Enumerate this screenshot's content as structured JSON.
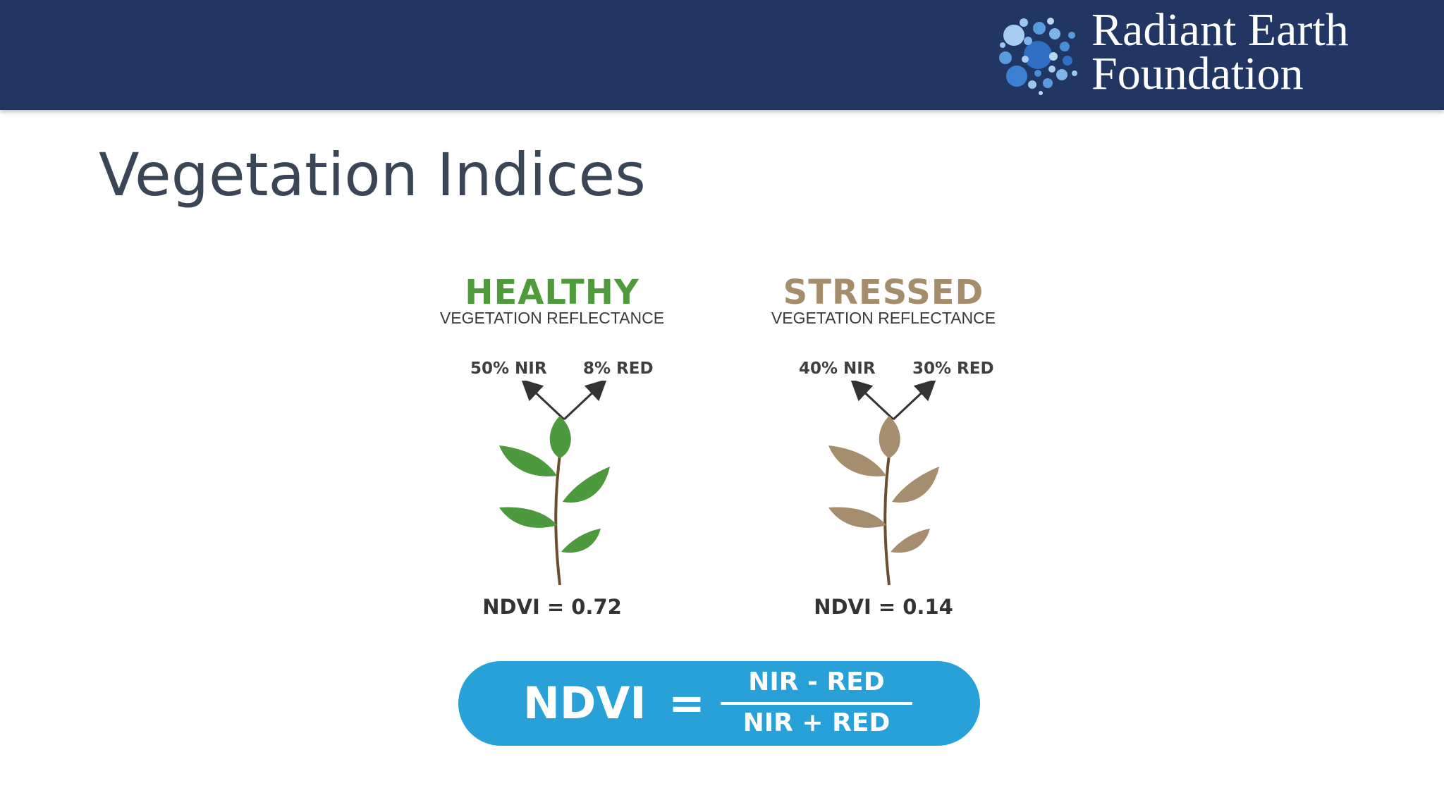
{
  "header": {
    "org_name_line1": "Radiant Earth",
    "org_name_line2": "Foundation",
    "background": "#213662"
  },
  "slide": {
    "title": "Vegetation Indices"
  },
  "healthy": {
    "heading": "HEALTHY",
    "subheading": "VEGETATION REFLECTANCE",
    "nir_label": "50% NIR",
    "red_label": "8% RED",
    "ndvi_label": "NDVI = 0.72",
    "color": "#4c9a3d",
    "heading_color": "#4f9a3a",
    "icon": "healthy-plant-icon"
  },
  "stressed": {
    "heading": "STRESSED",
    "subheading": "VEGETATION REFLECTANCE",
    "nir_label": "40% NIR",
    "red_label": "30% RED",
    "ndvi_label": "NDVI = 0.14",
    "color": "#a58d6e",
    "heading_color": "#a58c6b",
    "icon": "stressed-plant-icon"
  },
  "formula": {
    "lhs": "NDVI",
    "equals": "=",
    "numerator": "NIR - RED",
    "denominator": "NIR + RED",
    "background": "#28a0d8"
  }
}
